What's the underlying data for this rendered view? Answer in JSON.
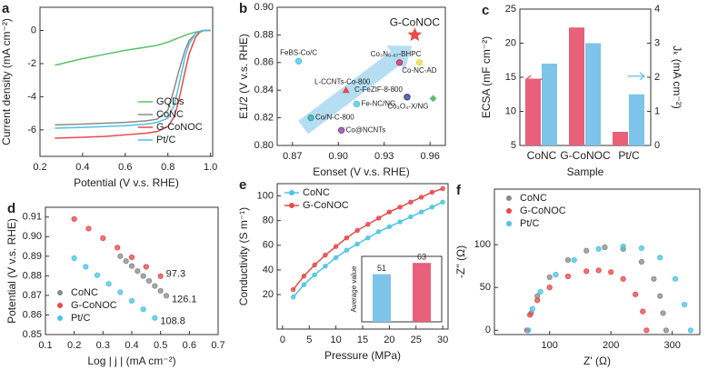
{
  "chart_data": [
    {
      "panel": "a",
      "type": "line",
      "xlabel": "Potential (V v.s. RHE)",
      "ylabel": "Current density (mA cm⁻²)",
      "xlim": [
        0.2,
        1.01
      ],
      "xticks": [
        0.2,
        0.4,
        0.6,
        0.8,
        {
          "value": 1,
          "label": "1.0"
        }
      ],
      "ylim": [
        -7.6,
        1.4
      ],
      "yticks": [
        -6,
        -4,
        -2,
        0
      ],
      "legend": "lower right",
      "x": [
        0.27,
        0.4,
        0.5,
        0.6,
        0.7,
        0.75,
        0.8,
        0.83,
        0.85,
        0.88,
        0.9,
        0.93,
        0.95,
        0.97,
        1.0
      ],
      "series": [
        {
          "name": "GQDs",
          "color": "#5cbf6a",
          "values": [
            -2.1,
            -1.7,
            -1.45,
            -1.2,
            -1.0,
            -0.9,
            -0.7,
            -0.55,
            -0.45,
            -0.3,
            -0.2,
            -0.1,
            -0.05,
            0,
            0
          ]
        },
        {
          "name": "CoNC",
          "color": "#8a8a8a",
          "values": [
            -5.7,
            -5.65,
            -5.6,
            -5.55,
            -5.45,
            -5.35,
            -4.8,
            -3.5,
            -2.5,
            -1.2,
            -0.6,
            -0.2,
            -0.05,
            0,
            0
          ]
        },
        {
          "name": "G-CoNOC",
          "color": "#e84a4a",
          "values": [
            -6.5,
            -6.45,
            -6.4,
            -6.3,
            -6.2,
            -6.1,
            -5.8,
            -5.2,
            -4.3,
            -2.5,
            -1.4,
            -0.4,
            -0.1,
            0,
            0
          ]
        },
        {
          "name": "Pt/C",
          "color": "#4cc4e4",
          "values": [
            -5.9,
            -5.85,
            -5.8,
            -5.75,
            -5.65,
            -5.55,
            -5.3,
            -4.5,
            -3.4,
            -1.6,
            -0.8,
            -0.2,
            -0.05,
            0,
            0
          ]
        }
      ]
    },
    {
      "panel": "b",
      "type": "scatter",
      "xlabel": "Eonset (V v.s. RHE)",
      "ylabel": "E1/2 (V v.s. RHE)",
      "xlim": [
        0.86,
        0.97
      ],
      "xticks": [
        0.87,
        {
          "value": 0.9,
          "label": "0.90"
        },
        0.93,
        0.96
      ],
      "ylim": [
        0.8,
        0.9
      ],
      "yticks": [
        {
          "value": 0.8,
          "label": "0.80"
        },
        0.82,
        0.84,
        0.86,
        0.88,
        {
          "value": 0.9,
          "label": "0.90"
        }
      ],
      "points": [
        {
          "label": "G-CoNOC",
          "x": 0.95,
          "y": 0.88,
          "color": "#e84a4a",
          "marker": "star"
        },
        {
          "label": "FeBS-Co/C",
          "x": 0.874,
          "y": 0.861,
          "color": "#4cc4e4",
          "marker": "circle"
        },
        {
          "label": "Co₃N₀.₆₇-BHPC",
          "x": 0.94,
          "y": 0.86,
          "color": "#c03060",
          "marker": "circle"
        },
        {
          "label": "Co-NC-AD",
          "x": 0.953,
          "y": 0.86,
          "color": "#e8d84a",
          "marker": "circle"
        },
        {
          "label": "L-CCNTs-Co-800",
          "x": 0.905,
          "y": 0.84,
          "color": "#e84a4a",
          "marker": "triangle"
        },
        {
          "label": "C-FeZIF-8-800",
          "x": 0.945,
          "y": 0.835,
          "color": "#2a3a8a",
          "marker": "circle"
        },
        {
          "label": "Fe-NC/NG",
          "x": 0.912,
          "y": 0.83,
          "color": "#4cc4e4",
          "marker": "circle"
        },
        {
          "label": "Co₃O₄-X/NG",
          "x": 0.962,
          "y": 0.834,
          "color": "#5cbf6a",
          "marker": "diamond"
        },
        {
          "label": "Co/N-C-800",
          "x": 0.882,
          "y": 0.82,
          "color": "#3aa8a0",
          "marker": "circle"
        },
        {
          "label": "Co@NCNTs",
          "x": 0.902,
          "y": 0.811,
          "color": "#8a3aa0",
          "marker": "circle"
        }
      ]
    },
    {
      "panel": "c",
      "type": "bar",
      "xlabel": "Sample",
      "ylabel": "ECSA (mF cm⁻²)",
      "y2label": "Jₖ (mA cm⁻²)",
      "categories": [
        "CoNC",
        "G-CoNOC",
        "Pt/C"
      ],
      "ylim": [
        5,
        25
      ],
      "yticks": [
        5,
        10,
        15,
        20,
        25
      ],
      "y2lim": [
        0,
        4
      ],
      "y2ticks": [
        0,
        1,
        2,
        3,
        4
      ],
      "series": [
        {
          "color": "#e8607a",
          "values": [
            14.7,
            22.3,
            7
          ]
        },
        {
          "color": "#7ec4ea",
          "axis": "y2",
          "values": [
            2.4,
            3.0,
            1.5
          ]
        }
      ]
    },
    {
      "panel": "d",
      "type": "scatter",
      "xlabel": "Log | j | (mA cm⁻²)",
      "ylabel": "Potential (V v.s. RHE)",
      "xlim": [
        0.1,
        0.7
      ],
      "xticks": [
        0.1,
        0.2,
        0.3,
        0.4,
        0.5,
        0.6,
        0.7
      ],
      "ylim": [
        0.85,
        0.915
      ],
      "yticks": [
        0.85,
        0.86,
        0.87,
        0.88,
        0.89,
        {
          "value": 0.9,
          "label": "0.90"
        },
        0.91
      ],
      "legend": "lower left",
      "series": [
        {
          "name": "CoNC",
          "color": "#8a8a8a",
          "annotation": 126.1,
          "x": [
            0.36,
            0.38,
            0.4,
            0.42,
            0.44,
            0.46,
            0.48,
            0.5,
            0.52
          ],
          "values": [
            0.89,
            0.8875,
            0.885,
            0.8824,
            0.8799,
            0.8774,
            0.8748,
            0.8723,
            0.8698
          ]
        },
        {
          "name": "G-CoNOC",
          "color": "#e84a4a",
          "annotation": 97.3,
          "x": [
            0.2,
            0.25,
            0.3,
            0.35,
            0.4,
            0.45,
            0.5
          ],
          "values": [
            0.909,
            0.9041,
            0.8992,
            0.8944,
            0.8895,
            0.8846,
            0.8798
          ]
        },
        {
          "name": "Pt/C",
          "color": "#4cc4e4",
          "annotation": 108.8,
          "x": [
            0.2,
            0.24,
            0.28,
            0.32,
            0.36,
            0.4,
            0.44,
            0.48
          ],
          "values": [
            0.889,
            0.8846,
            0.8803,
            0.8759,
            0.8716,
            0.8672,
            0.8629,
            0.8585
          ]
        }
      ]
    },
    {
      "panel": "e",
      "type": "line",
      "markers": true,
      "xlabel": "Pressure (MPa)",
      "ylabel": "Conductivity (S m⁻¹)",
      "xlim": [
        -1,
        31
      ],
      "xticks": [
        0,
        5,
        10,
        15,
        20,
        25,
        30
      ],
      "ylim": [
        -8,
        110
      ],
      "yticks": [
        20,
        40,
        60,
        80,
        100
      ],
      "legend": "upper left",
      "x": [
        2,
        4,
        6,
        8,
        10,
        12,
        14,
        16,
        18,
        20,
        22,
        24,
        26,
        28,
        30
      ],
      "series": [
        {
          "name": "CoNC",
          "color": "#4cc4e4",
          "values": [
            18,
            28,
            36,
            43,
            50,
            56,
            61,
            66,
            71,
            75,
            79,
            83,
            87,
            91,
            95
          ]
        },
        {
          "name": "G-CoNOC",
          "color": "#e84a4a",
          "values": [
            24,
            35,
            44,
            52,
            59,
            66,
            72,
            77,
            82,
            87,
            91,
            95,
            99,
            103,
            106
          ]
        }
      ],
      "inset": {
        "type": "bar",
        "ylabel": "Average value",
        "ylim": [
          0,
          70
        ],
        "values": [
          51,
          63
        ],
        "colors": [
          "#7ec4ea",
          "#e8607a"
        ]
      }
    },
    {
      "panel": "f",
      "type": "scatter",
      "xlabel": "Z' (Ω)",
      "ylabel": "-Z'' (Ω)",
      "xlim": [
        10,
        345
      ],
      "xticks": [
        100,
        200,
        300
      ],
      "ylim": [
        -5,
        165
      ],
      "yticks": [
        0,
        50,
        100
      ],
      "legend": "upper left",
      "series": [
        {
          "name": "CoNC",
          "color": "#8a8a8a",
          "x": [
            65,
            70,
            80,
            100,
            130,
            160,
            190,
            220,
            250,
            270,
            280,
            285,
            290
          ],
          "values": [
            0,
            20,
            40,
            62,
            82,
            93,
            97,
            95,
            80,
            60,
            40,
            20,
            0
          ]
        },
        {
          "name": "G-CoNOC",
          "color": "#e84a4a",
          "x": [
            63,
            68,
            80,
            100,
            130,
            160,
            180,
            200,
            220,
            240,
            252,
            258
          ],
          "values": [
            0,
            18,
            35,
            50,
            63,
            69,
            70,
            68,
            60,
            42,
            22,
            0
          ]
        },
        {
          "name": "Pt/C",
          "color": "#4cc4e4",
          "x": [
            65,
            72,
            85,
            110,
            140,
            180,
            220,
            250,
            280,
            305,
            320,
            330
          ],
          "values": [
            0,
            25,
            45,
            65,
            82,
            95,
            98,
            96,
            85,
            60,
            30,
            0
          ]
        }
      ]
    }
  ]
}
